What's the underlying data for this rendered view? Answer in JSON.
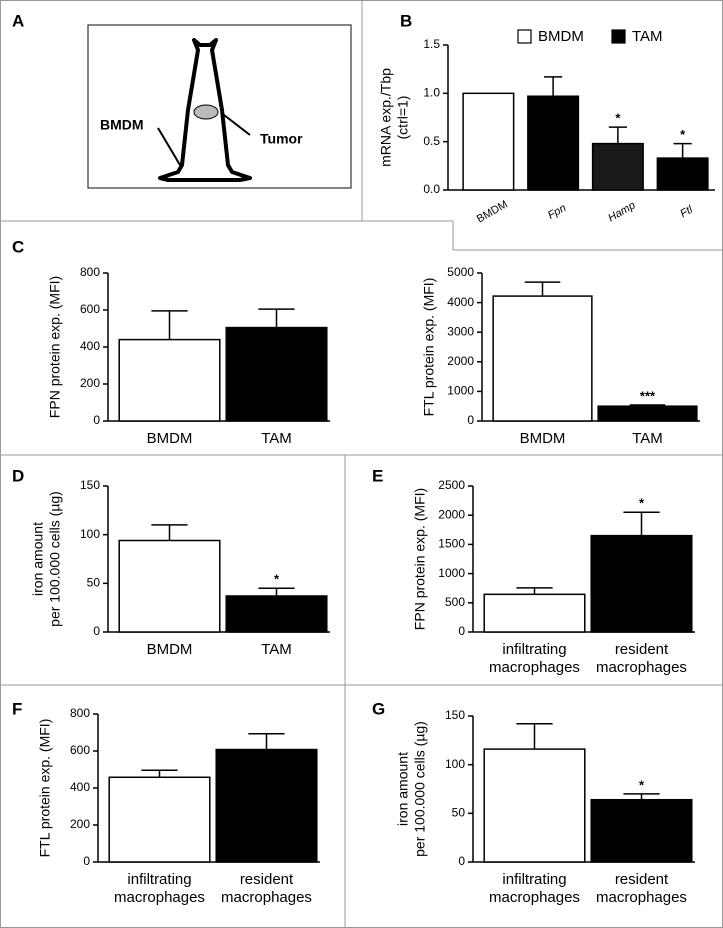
{
  "chart_data": [
    {
      "type": "diagram",
      "panel": "A",
      "labels": [
        "BMDM",
        "Tumor"
      ]
    },
    {
      "type": "bar",
      "panel": "B",
      "ylabel": [
        "mRNA exp./Tbp",
        "(ctrl=1)"
      ],
      "categories": [
        "BMDM",
        "Fpn",
        "Hamp",
        "Ftl"
      ],
      "values": [
        1.0,
        0.97,
        0.48,
        0.33
      ],
      "errors": [
        null,
        0.2,
        0.17,
        0.15
      ],
      "colors": [
        "#ffffff",
        "#000000",
        "#1a1a1a",
        "#000000"
      ],
      "significance": [
        null,
        null,
        "*",
        "*"
      ],
      "legend": [
        {
          "name": "BMDM",
          "color": "#ffffff"
        },
        {
          "name": "TAM",
          "color": "#000000"
        }
      ],
      "ylim": [
        0,
        1.5
      ],
      "yticks": [
        {
          "value": 0,
          "label": "0.0"
        },
        {
          "value": 0.5,
          "label": "0.5"
        },
        {
          "value": 1,
          "label": "1.0"
        },
        {
          "value": 1.5,
          "label": "1.5"
        }
      ]
    },
    {
      "type": "bar",
      "panel": "C",
      "ylabel": [
        "FPN protein exp. (MFI)"
      ],
      "categories": [
        "BMDM",
        "TAM"
      ],
      "values": [
        440,
        505
      ],
      "errors": [
        155,
        100
      ],
      "colors": [
        "#ffffff",
        "#000000"
      ],
      "significance": [
        null,
        null
      ],
      "ylim": [
        0,
        800
      ],
      "yticks": [
        0,
        200,
        400,
        600,
        800
      ]
    },
    {
      "type": "bar",
      "ylabel": [
        "FTL protein exp. (MFI)"
      ],
      "categories": [
        "BMDM",
        "TAM"
      ],
      "values": [
        4220,
        500
      ],
      "errors": [
        470,
        40
      ],
      "colors": [
        "#ffffff",
        "#000000"
      ],
      "significance": [
        null,
        "***"
      ],
      "ylim": [
        0,
        5000
      ],
      "yticks": [
        0,
        1000,
        2000,
        3000,
        4000,
        5000
      ]
    },
    {
      "type": "bar",
      "panel": "D",
      "ylabel": [
        "iron amount",
        "per 100.000 cells (µg)"
      ],
      "categories": [
        "BMDM",
        "TAM"
      ],
      "values": [
        94,
        37
      ],
      "errors": [
        16,
        8
      ],
      "colors": [
        "#ffffff",
        "#000000"
      ],
      "significance": [
        null,
        "*"
      ],
      "ylim": [
        0,
        150
      ],
      "yticks": [
        0,
        50,
        100,
        150
      ]
    },
    {
      "type": "bar",
      "panel": "E",
      "ylabel": [
        "FPN protein exp. (MFI)"
      ],
      "categories": [
        "infiltrating macrophages",
        "resident macrophages"
      ],
      "values": [
        645,
        1650
      ],
      "errors": [
        110,
        400
      ],
      "colors": [
        "#ffffff",
        "#000000"
      ],
      "significance": [
        null,
        "*"
      ],
      "ylim": [
        0,
        2500
      ],
      "yticks": [
        0,
        500,
        1000,
        1500,
        2000,
        2500
      ]
    },
    {
      "type": "bar",
      "panel": "F",
      "ylabel": [
        "FTL protein exp. (MFI)"
      ],
      "categories": [
        "infiltrating macrophages",
        "resident macrophages"
      ],
      "values": [
        458,
        608
      ],
      "errors": [
        38,
        85
      ],
      "colors": [
        "#ffffff",
        "#000000"
      ],
      "significance": [
        null,
        null
      ],
      "ylim": [
        0,
        800
      ],
      "yticks": [
        0,
        200,
        400,
        600,
        800
      ]
    },
    {
      "type": "bar",
      "panel": "G",
      "ylabel": [
        "iron amount",
        "per 100.000 cells (µg)"
      ],
      "categories": [
        "infiltrating macrophages",
        "resident macrophages"
      ],
      "values": [
        116,
        64
      ],
      "errors": [
        26,
        6
      ],
      "colors": [
        "#ffffff",
        "#000000"
      ],
      "significance": [
        null,
        "*"
      ],
      "ylim": [
        0,
        150
      ],
      "yticks": [
        0,
        50,
        100,
        150
      ]
    }
  ]
}
